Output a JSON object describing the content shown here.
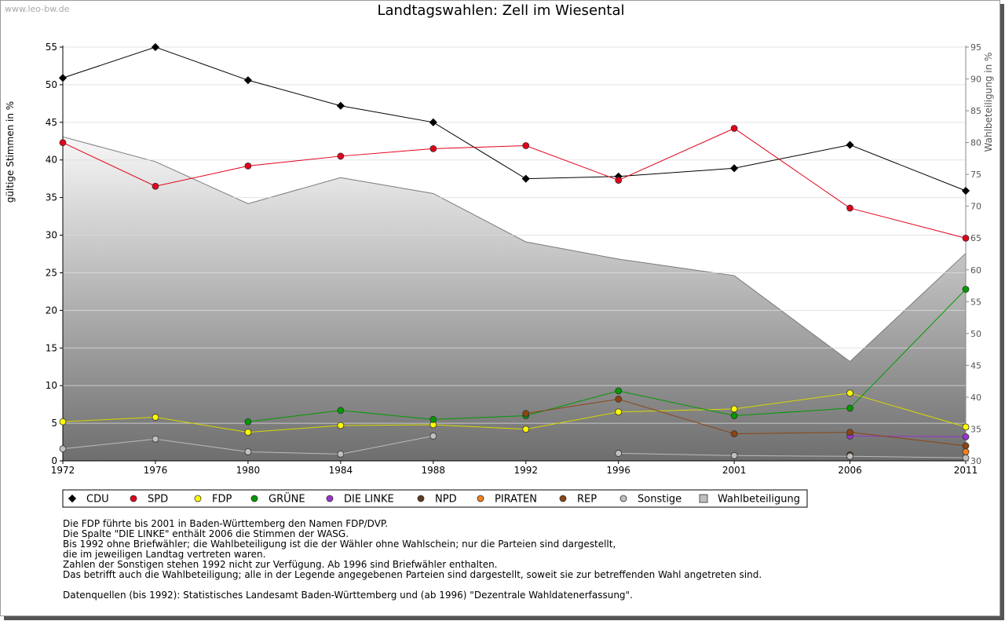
{
  "watermark": "www.leo-bw.de",
  "title": "Landtagswahlen: Zell im Wiesental",
  "chart_data": {
    "type": "line",
    "title": "Landtagswahlen: Zell im Wiesental",
    "xlabel": "",
    "ylabel": "gültige Stimmen in %",
    "y2label": "Wahlbeteiligung in %",
    "x": [
      1972,
      1976,
      1980,
      1984,
      1988,
      1992,
      1996,
      2001,
      2006,
      2011
    ],
    "ylim": [
      0,
      55
    ],
    "y2lim": [
      30,
      95
    ],
    "yticks": [
      0,
      5,
      10,
      15,
      20,
      25,
      30,
      35,
      40,
      45,
      50,
      55
    ],
    "y2ticks": [
      30,
      35,
      40,
      45,
      50,
      55,
      60,
      65,
      70,
      75,
      80,
      85,
      90,
      95
    ],
    "grid": true,
    "legend_position": "bottom",
    "series": [
      {
        "name": "CDU",
        "color": "#000000",
        "marker": "diamond",
        "values": [
          50.9,
          55.0,
          50.6,
          47.2,
          45.0,
          37.5,
          37.8,
          38.9,
          42.0,
          35.9
        ]
      },
      {
        "name": "SPD",
        "color": "#e2001a",
        "marker": "circle",
        "values": [
          42.3,
          36.5,
          39.2,
          40.5,
          41.5,
          41.9,
          37.3,
          44.2,
          33.6,
          29.6
        ]
      },
      {
        "name": "FDP",
        "color": "#ffff00",
        "line_color": "#d8d800",
        "marker": "circle",
        "values": [
          5.2,
          5.8,
          3.8,
          4.7,
          4.8,
          4.2,
          6.5,
          6.9,
          9.0,
          4.5
        ]
      },
      {
        "name": "GRÜNE",
        "color": "#009a00",
        "marker": "circle",
        "values": [
          null,
          null,
          5.2,
          6.7,
          5.5,
          6.0,
          9.3,
          6.0,
          7.0,
          22.8
        ]
      },
      {
        "name": "DIE LINKE",
        "color": "#9933cc",
        "marker": "circle",
        "values": [
          null,
          null,
          null,
          null,
          null,
          null,
          null,
          null,
          3.3,
          3.2
        ]
      },
      {
        "name": "NPD",
        "color": "#5a3a1e",
        "marker": "circle",
        "values": [
          null,
          null,
          null,
          null,
          null,
          null,
          null,
          null,
          0.8,
          null
        ]
      },
      {
        "name": "PIRATEN",
        "color": "#f57f17",
        "marker": "circle",
        "values": [
          null,
          null,
          null,
          null,
          null,
          null,
          null,
          null,
          null,
          1.2
        ]
      },
      {
        "name": "REP",
        "color": "#8b4513",
        "line_color": "#8b4513",
        "marker": "circle",
        "values": [
          null,
          null,
          null,
          null,
          null,
          6.3,
          8.2,
          3.6,
          3.8,
          2.0
        ]
      },
      {
        "name": "Sonstige",
        "color": "#c0c0c0",
        "line_color": "#bbbbbb",
        "marker": "circle",
        "values": [
          1.6,
          2.9,
          1.2,
          0.9,
          3.3,
          null,
          1.0,
          0.7,
          0.6,
          0.4
        ]
      },
      {
        "name": "Wahlbeteiligung",
        "color": "#bfbfbf",
        "marker": "square",
        "axis": "right",
        "type": "area",
        "values": [
          80.9,
          77.0,
          70.4,
          74.5,
          72.0,
          64.4,
          61.7,
          59.1,
          45.6,
          62.6
        ]
      }
    ]
  },
  "notes": [
    "Die FDP führte bis 2001 in Baden-Württemberg den Namen FDP/DVP.",
    "Die Spalte \"DIE LINKE\" enthält 2006 die Stimmen der WASG.",
    "Bis 1992 ohne Briefwähler; die Wahlbeteiligung ist die der Wähler ohne Wahlschein; nur die Parteien sind dargestellt,",
    "die im jeweiligen Landtag vertreten waren.",
    "Zahlen der Sonstigen stehen 1992 nicht zur Verfügung. Ab 1996 sind Briefwähler enthalten.",
    "Das betrifft auch die Wahlbeteiligung; alle in der Legende angegebenen Parteien sind dargestellt, soweit sie zur betreffenden Wahl angetreten sind."
  ],
  "source": "Datenquellen (bis 1992): Statistisches Landesamt Baden-Württemberg und (ab 1996) \"Dezentrale Wahldatenerfassung\"."
}
